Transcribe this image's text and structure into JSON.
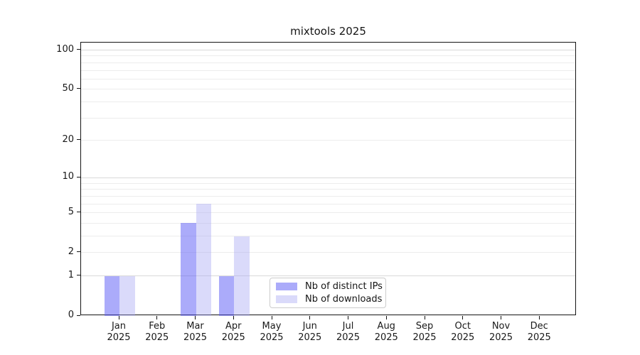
{
  "chart_data": {
    "type": "bar",
    "title": "mixtools 2025",
    "xlabel": "",
    "ylabel": "",
    "categories": [
      "Jan",
      "Feb",
      "Mar",
      "Apr",
      "May",
      "Jun",
      "Jul",
      "Aug",
      "Sep",
      "Oct",
      "Nov",
      "Dec"
    ],
    "year_label": "2025",
    "series": [
      {
        "name": "Nb of distinct IPs",
        "color": "#5858f5",
        "alpha": 0.5,
        "values": [
          1,
          0,
          4,
          1,
          0,
          0,
          0,
          0,
          0,
          0,
          0,
          0
        ]
      },
      {
        "name": "Nb of downloads",
        "color": "#a6a6f4",
        "alpha": 0.42,
        "values": [
          1,
          0,
          6,
          3,
          0,
          0,
          0,
          0,
          0,
          0,
          0,
          0
        ]
      }
    ],
    "yscale": "log1p",
    "ylim": [
      0,
      114
    ],
    "yticks": [
      0,
      1,
      2,
      5,
      10,
      20,
      50,
      100
    ],
    "grid": true,
    "grid_minor_values": [
      2,
      3,
      4,
      5,
      6,
      7,
      8,
      9,
      20,
      30,
      40,
      50,
      60,
      70,
      80,
      90
    ],
    "grid_major_values": [
      1,
      10,
      100
    ],
    "legend_position": "bottom-center",
    "colors": {
      "grid_minor": "#ececec",
      "grid_major": "#d9d9d9",
      "spine": "#141414",
      "text": "#191919",
      "background": "#ffffff"
    }
  }
}
